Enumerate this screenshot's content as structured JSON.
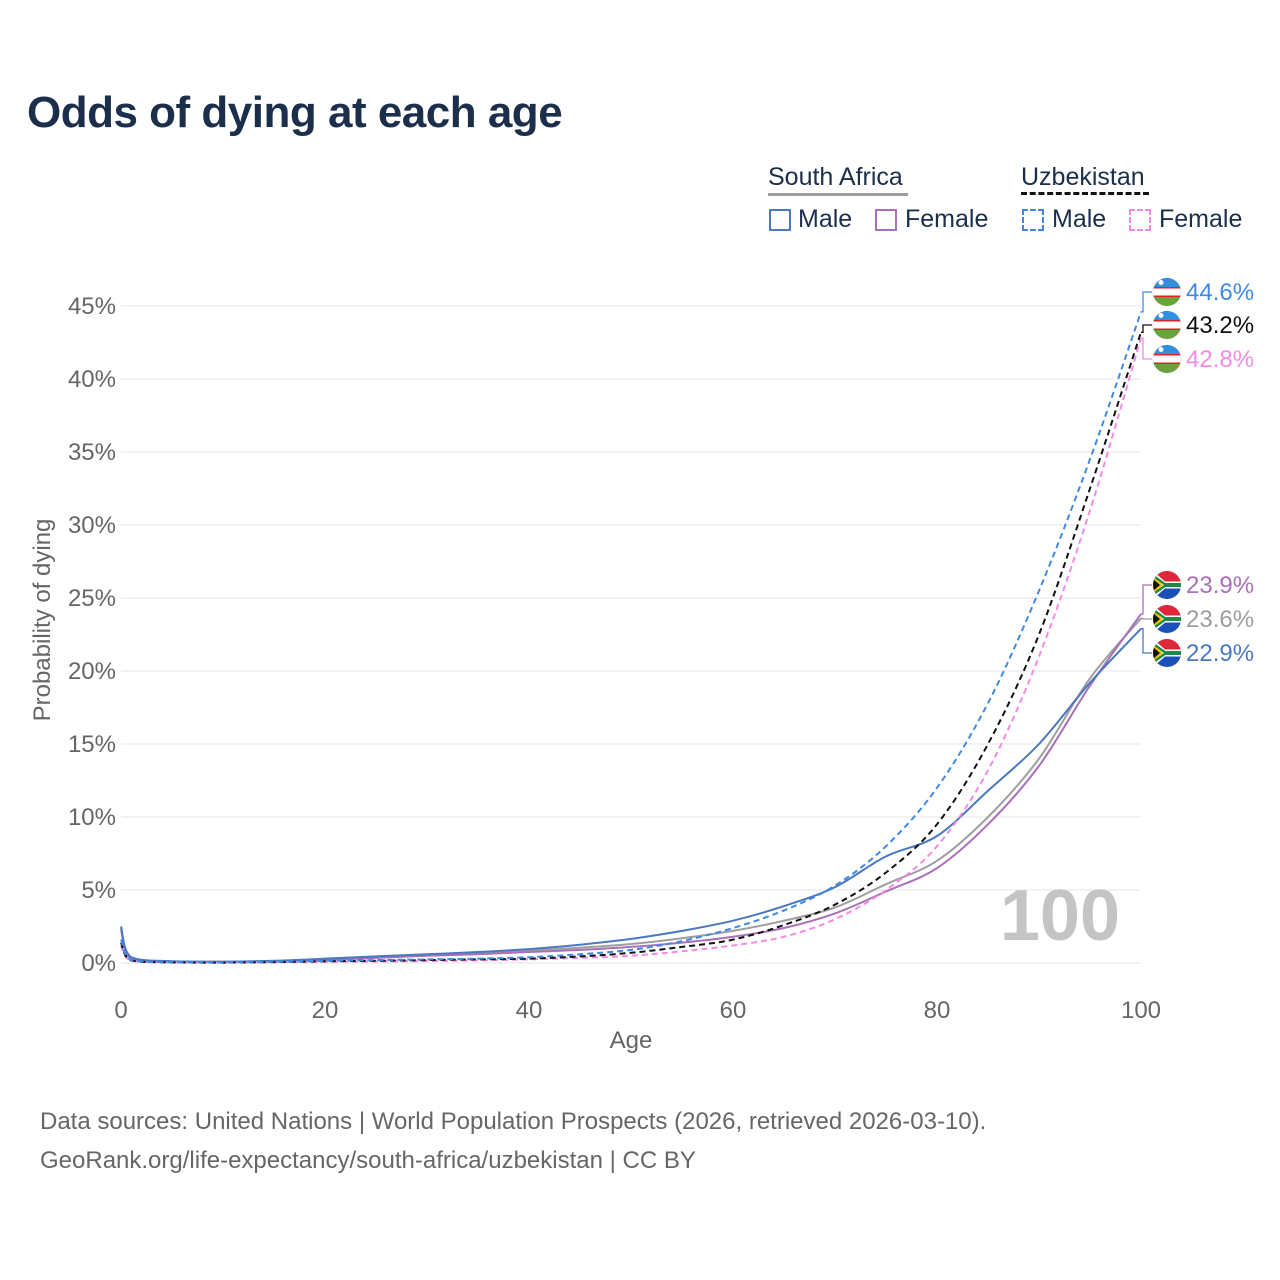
{
  "title": "Odds of dying at each age",
  "legend": {
    "groups": [
      {
        "country": "South Africa",
        "male_label": "Male",
        "female_label": "Female"
      },
      {
        "country": "Uzbekistan",
        "male_label": "Male",
        "female_label": "Female"
      }
    ]
  },
  "footer": {
    "sources": "Data sources: United Nations | World Population Prospects (2026, retrieved 2026-03-10).",
    "credit": "GeoRank.org/life-expectancy/south-africa/uzbekistan | CC BY"
  },
  "colors": {
    "za_male": "#4a78c0",
    "za_female": "#a96fb8",
    "za_total": "#9e9e9e",
    "uz_male": "#3d8ae6",
    "uz_female": "#f58ae6",
    "uz_total": "#111111",
    "title": "#1b2e4b",
    "axis_text": "#666666",
    "grid": "#e6e6e6",
    "watermark": "#c4c4c4"
  },
  "chart_data": {
    "type": "line",
    "xlabel": "Age",
    "ylabel": "Probability of dying",
    "xlim": [
      0,
      100
    ],
    "ylim": [
      0,
      45
    ],
    "xticks": [
      0,
      20,
      40,
      60,
      80,
      100
    ],
    "xtick_labels": [
      "0",
      "20",
      "40",
      "60",
      "80",
      "100"
    ],
    "yticks": [
      0,
      5,
      10,
      15,
      20,
      25,
      30,
      35,
      40,
      45
    ],
    "ytick_labels": [
      "0%",
      "5%",
      "10%",
      "15%",
      "20%",
      "25%",
      "30%",
      "35%",
      "40%",
      "45%"
    ],
    "watermark_year": "100",
    "x": [
      0,
      1,
      5,
      10,
      15,
      20,
      25,
      30,
      35,
      40,
      45,
      50,
      55,
      60,
      65,
      70,
      75,
      80,
      85,
      90,
      95,
      100
    ],
    "series": [
      {
        "id": "uz_male",
        "name": "Uzbekistan Male",
        "dashed": true,
        "values": [
          1.6,
          0.2,
          0.05,
          0.04,
          0.08,
          0.15,
          0.2,
          0.25,
          0.3,
          0.4,
          0.6,
          0.9,
          1.5,
          2.4,
          3.6,
          5.3,
          8.0,
          12.0,
          17.8,
          25.5,
          34.5,
          44.6
        ],
        "end_label": "44.6%",
        "flag": "uz"
      },
      {
        "id": "uz_total",
        "name": "Uzbekistan",
        "dashed": true,
        "values": [
          1.4,
          0.18,
          0.04,
          0.03,
          0.06,
          0.12,
          0.15,
          0.2,
          0.25,
          0.3,
          0.45,
          0.7,
          1.1,
          1.6,
          2.6,
          4.0,
          6.2,
          9.5,
          15.0,
          22.5,
          32.5,
          43.2
        ],
        "end_label": "43.2%",
        "flag": "uz"
      },
      {
        "id": "uz_female",
        "name": "Uzbekistan Female",
        "dashed": true,
        "values": [
          1.2,
          0.15,
          0.03,
          0.02,
          0.04,
          0.07,
          0.1,
          0.13,
          0.18,
          0.25,
          0.35,
          0.5,
          0.8,
          1.2,
          1.8,
          3.0,
          5.0,
          8.0,
          13.2,
          21.0,
          31.0,
          42.8
        ],
        "end_label": "42.8%",
        "flag": "uz"
      },
      {
        "id": "za_female",
        "name": "South Africa Female",
        "dashed": false,
        "values": [
          2.3,
          0.3,
          0.1,
          0.08,
          0.12,
          0.2,
          0.35,
          0.5,
          0.6,
          0.75,
          0.9,
          1.1,
          1.4,
          1.8,
          2.4,
          3.4,
          4.9,
          6.5,
          9.5,
          13.5,
          19.0,
          23.9
        ],
        "end_label": "23.9%",
        "flag": "za"
      },
      {
        "id": "za_total",
        "name": "South Africa",
        "dashed": false,
        "values": [
          2.4,
          0.35,
          0.1,
          0.08,
          0.14,
          0.25,
          0.4,
          0.55,
          0.7,
          0.85,
          1.05,
          1.3,
          1.7,
          2.2,
          2.9,
          3.8,
          5.4,
          7.0,
          10.0,
          14.0,
          19.5,
          23.6
        ],
        "end_label": "23.6%",
        "flag": "za"
      },
      {
        "id": "za_male",
        "name": "South Africa Male",
        "dashed": false,
        "values": [
          2.5,
          0.4,
          0.12,
          0.09,
          0.15,
          0.3,
          0.45,
          0.6,
          0.75,
          0.95,
          1.25,
          1.65,
          2.2,
          2.9,
          3.9,
          5.2,
          7.3,
          8.7,
          11.8,
          15.0,
          19.2,
          22.9
        ],
        "end_label": "22.9%",
        "flag": "za"
      }
    ]
  }
}
